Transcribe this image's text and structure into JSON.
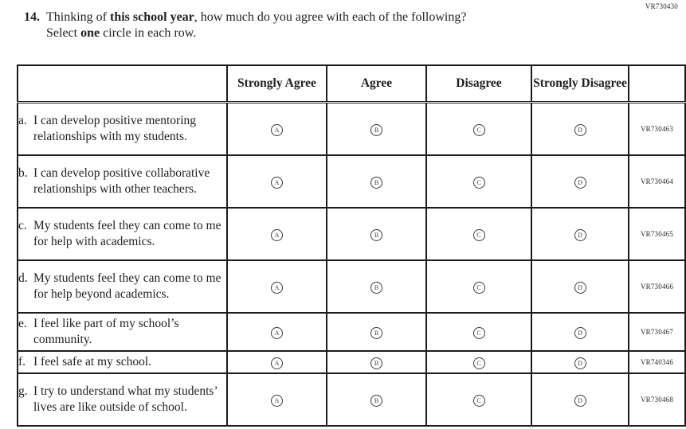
{
  "page": {
    "top_right_code": "VR730430"
  },
  "question": {
    "number": "14.",
    "seg1": "Thinking of ",
    "bold1": "this school year",
    "seg2": ", how much do you agree with each of the following?",
    "seg3": "Select ",
    "bold2": "one",
    "seg4": " circle in each row."
  },
  "table": {
    "headers": {
      "statement": "",
      "strongly_agree": "Strongly Agree",
      "agree": "Agree",
      "disagree": "Disagree",
      "strongly_disagree": "Strongly Disagree",
      "code": ""
    },
    "options": [
      "A",
      "B",
      "C",
      "D"
    ],
    "rows": [
      {
        "letter": "a.",
        "statement": "I can develop positive mentoring relationships with my students.",
        "code": "VR730463"
      },
      {
        "letter": "b.",
        "statement": "I can develop positive collaborative relationships with other teachers.",
        "code": "VR730464"
      },
      {
        "letter": "c.",
        "statement": "My students feel they can come to me for help with academics.",
        "code": "VR730465"
      },
      {
        "letter": "d.",
        "statement": "My students feel they can come to me for help beyond academics.",
        "code": "VR730466"
      },
      {
        "letter": "e.",
        "statement": "I feel like part of my school’s community.",
        "code": "VR730467"
      },
      {
        "letter": "f.",
        "statement": "I feel safe at my school.",
        "code": "VR740346"
      },
      {
        "letter": "g.",
        "statement": "I try to understand what my students’ lives are like outside of school.",
        "code": "VR730468"
      }
    ]
  }
}
